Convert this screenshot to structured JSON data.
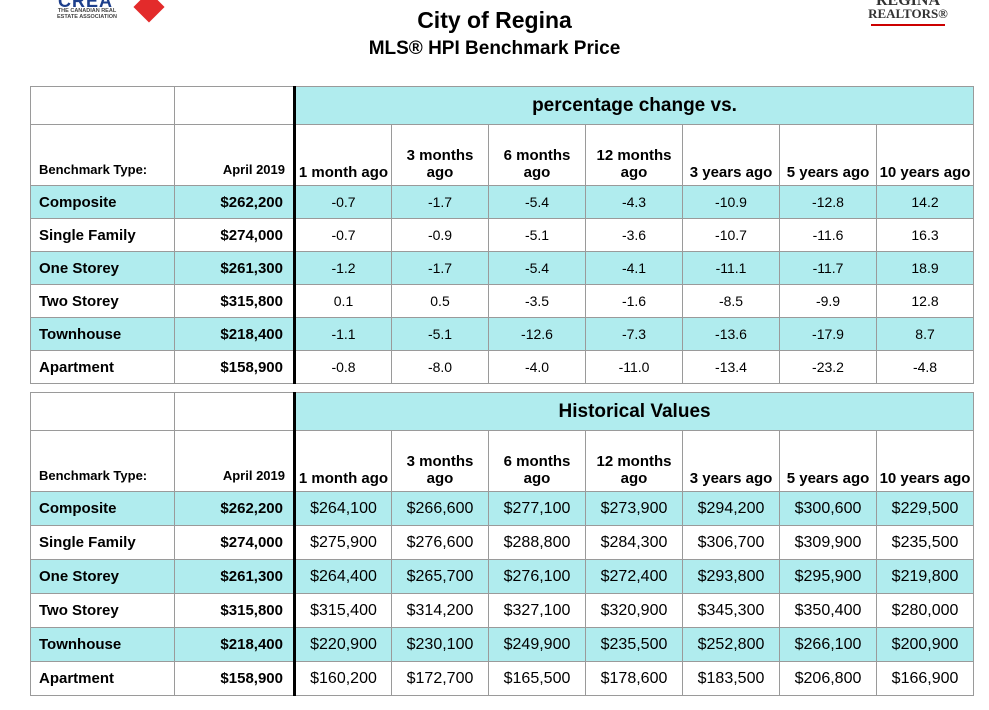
{
  "header": {
    "title": "City of Regina",
    "subtitle": "MLS® HPI Benchmark Price",
    "logo_left_text": "CREA",
    "logo_left_sub": "THE CANADIAN REAL ESTATE ASSOCIATION",
    "logo_right_line1": "REGINA",
    "logo_right_line2": "REALTORS®"
  },
  "columns": {
    "type_label": "Benchmark Type:",
    "date_label": "April 2019",
    "periods": [
      "1 month ago",
      "3 months ago",
      "6 months ago",
      "12 months ago",
      "3 years ago",
      "5 years ago",
      "10 years ago"
    ]
  },
  "pct_table": {
    "banner": "percentage change vs.",
    "rows": [
      {
        "name": "Composite",
        "price": "$262,200",
        "values": [
          "-0.7",
          "-1.7",
          "-5.4",
          "-4.3",
          "-10.9",
          "-12.8",
          "14.2"
        ]
      },
      {
        "name": "Single Family",
        "price": "$274,000",
        "values": [
          "-0.7",
          "-0.9",
          "-5.1",
          "-3.6",
          "-10.7",
          "-11.6",
          "16.3"
        ]
      },
      {
        "name": "One Storey",
        "price": "$261,300",
        "values": [
          "-1.2",
          "-1.7",
          "-5.4",
          "-4.1",
          "-11.1",
          "-11.7",
          "18.9"
        ]
      },
      {
        "name": "Two Storey",
        "price": "$315,800",
        "values": [
          "0.1",
          "0.5",
          "-3.5",
          "-1.6",
          "-8.5",
          "-9.9",
          "12.8"
        ]
      },
      {
        "name": "Townhouse",
        "price": "$218,400",
        "values": [
          "-1.1",
          "-5.1",
          "-12.6",
          "-7.3",
          "-13.6",
          "-17.9",
          "8.7"
        ]
      },
      {
        "name": "Apartment",
        "price": "$158,900",
        "values": [
          "-0.8",
          "-8.0",
          "-4.0",
          "-11.0",
          "-13.4",
          "-23.2",
          "-4.8"
        ]
      }
    ]
  },
  "hist_table": {
    "banner": "Historical Values",
    "rows": [
      {
        "name": "Composite",
        "price": "$262,200",
        "values": [
          "$264,100",
          "$266,600",
          "$277,100",
          "$273,900",
          "$294,200",
          "$300,600",
          "$229,500"
        ]
      },
      {
        "name": "Single Family",
        "price": "$274,000",
        "values": [
          "$275,900",
          "$276,600",
          "$288,800",
          "$284,300",
          "$306,700",
          "$309,900",
          "$235,500"
        ]
      },
      {
        "name": "One Storey",
        "price": "$261,300",
        "values": [
          "$264,400",
          "$265,700",
          "$276,100",
          "$272,400",
          "$293,800",
          "$295,900",
          "$219,800"
        ]
      },
      {
        "name": "Two Storey",
        "price": "$315,800",
        "values": [
          "$315,400",
          "$314,200",
          "$327,100",
          "$320,900",
          "$345,300",
          "$350,400",
          "$280,000"
        ]
      },
      {
        "name": "Townhouse",
        "price": "$218,400",
        "values": [
          "$220,900",
          "$230,100",
          "$249,900",
          "$235,500",
          "$252,800",
          "$266,100",
          "$200,900"
        ]
      },
      {
        "name": "Apartment",
        "price": "$158,900",
        "values": [
          "$160,200",
          "$172,700",
          "$165,500",
          "$178,600",
          "$183,500",
          "$206,800",
          "$166,900"
        ]
      }
    ]
  },
  "colors": {
    "highlight": "#b0ecee",
    "border": "#9a9a9a",
    "separator": "#000000"
  }
}
